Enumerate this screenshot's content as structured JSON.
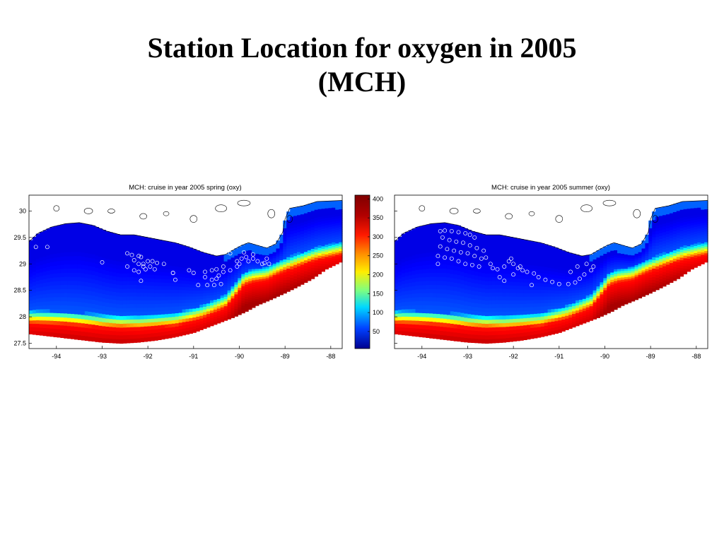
{
  "slide_title": [
    "Station Location for oxygen in 2005",
    "(MCH)"
  ],
  "colorbar": {
    "ticks": [
      "400",
      "350",
      "300",
      "250",
      "200",
      "150",
      "100",
      "50"
    ],
    "tick_values": [
      400,
      350,
      300,
      250,
      200,
      150,
      100,
      50
    ],
    "range": [
      5,
      410
    ],
    "colormap": "jet"
  },
  "chart_data": [
    {
      "type": "scatter",
      "title": "MCH: cruise in year 2005 spring (oxy)",
      "x_ticks": [
        "-94",
        "-93",
        "-92",
        "-91",
        "-90",
        "-89",
        "-88"
      ],
      "y_ticks": [
        "30",
        "29.5",
        "29",
        "28.5",
        "28",
        "27.5"
      ],
      "xlim": [
        -94.6,
        -87.75
      ],
      "ylim": [
        27.4,
        30.3
      ],
      "stations": [
        [
          -94.45,
          29.32
        ],
        [
          -94.2,
          29.32
        ],
        [
          -93.0,
          29.03
        ],
        [
          -92.45,
          29.2
        ],
        [
          -92.35,
          29.17
        ],
        [
          -92.2,
          29.15
        ],
        [
          -92.15,
          29.13
        ],
        [
          -92.45,
          28.95
        ],
        [
          -92.3,
          29.07
        ],
        [
          -92.2,
          29.0
        ],
        [
          -92.1,
          29.0
        ],
        [
          -92.0,
          29.05
        ],
        [
          -92.3,
          28.88
        ],
        [
          -92.2,
          28.85
        ],
        [
          -92.1,
          28.95
        ],
        [
          -92.05,
          28.9
        ],
        [
          -91.95,
          28.95
        ],
        [
          -91.9,
          29.05
        ],
        [
          -91.85,
          28.9
        ],
        [
          -91.8,
          29.02
        ],
        [
          -91.65,
          29.0
        ],
        [
          -91.1,
          28.88
        ],
        [
          -91.45,
          28.83
        ],
        [
          -91.45,
          28.83
        ],
        [
          -91.0,
          28.83
        ],
        [
          -90.75,
          28.85
        ],
        [
          -90.6,
          28.88
        ],
        [
          -90.5,
          28.9
        ],
        [
          -90.75,
          28.75
        ],
        [
          -90.6,
          28.7
        ],
        [
          -90.5,
          28.72
        ],
        [
          -90.45,
          28.78
        ],
        [
          -90.35,
          28.85
        ],
        [
          -90.2,
          28.88
        ],
        [
          -90.05,
          28.95
        ],
        [
          -90.0,
          29.0
        ],
        [
          -89.95,
          29.1
        ],
        [
          -89.85,
          29.13
        ],
        [
          -89.8,
          29.05
        ],
        [
          -89.7,
          29.1
        ],
        [
          -89.6,
          29.05
        ],
        [
          -89.5,
          29.0
        ],
        [
          -89.45,
          29.02
        ],
        [
          -89.4,
          29.1
        ],
        [
          -89.35,
          29.0
        ],
        [
          -90.7,
          28.6
        ],
        [
          -90.55,
          28.6
        ],
        [
          -90.4,
          28.62
        ],
        [
          -91.4,
          28.7
        ],
        [
          -92.15,
          28.68
        ],
        [
          -90.05,
          29.05
        ],
        [
          -90.2,
          29.2
        ],
        [
          -89.9,
          29.22
        ],
        [
          -89.7,
          29.18
        ],
        [
          -90.9,
          28.6
        ],
        [
          -90.35,
          28.95
        ]
      ]
    },
    {
      "type": "scatter",
      "title": "MCH: cruise in year 2005 summer (oxy)",
      "x_ticks": [
        "-94",
        "-93",
        "-92",
        "-91",
        "-90",
        "-89",
        "-88"
      ],
      "y_ticks": [
        "30",
        "29.5",
        "29",
        "28.5",
        "28",
        "27.5"
      ],
      "xlim": [
        -94.6,
        -87.75
      ],
      "ylim": [
        27.4,
        30.3
      ],
      "stations": [
        [
          -93.6,
          29.62
        ],
        [
          -93.5,
          29.63
        ],
        [
          -93.35,
          29.62
        ],
        [
          -93.2,
          29.6
        ],
        [
          -93.05,
          29.58
        ],
        [
          -92.95,
          29.55
        ],
        [
          -92.85,
          29.5
        ],
        [
          -93.55,
          29.5
        ],
        [
          -93.4,
          29.45
        ],
        [
          -93.25,
          29.42
        ],
        [
          -93.1,
          29.4
        ],
        [
          -92.95,
          29.35
        ],
        [
          -92.8,
          29.3
        ],
        [
          -92.65,
          29.25
        ],
        [
          -93.6,
          29.33
        ],
        [
          -93.45,
          29.28
        ],
        [
          -93.3,
          29.25
        ],
        [
          -93.15,
          29.22
        ],
        [
          -93.0,
          29.2
        ],
        [
          -92.85,
          29.15
        ],
        [
          -92.7,
          29.1
        ],
        [
          -93.65,
          29.15
        ],
        [
          -93.5,
          29.12
        ],
        [
          -93.35,
          29.1
        ],
        [
          -93.2,
          29.05
        ],
        [
          -93.05,
          29.0
        ],
        [
          -92.9,
          28.98
        ],
        [
          -92.75,
          28.95
        ],
        [
          -92.6,
          29.12
        ],
        [
          -92.5,
          29.0
        ],
        [
          -92.45,
          28.92
        ],
        [
          -92.35,
          28.9
        ],
        [
          -92.2,
          28.95
        ],
        [
          -92.1,
          29.05
        ],
        [
          -92.05,
          29.1
        ],
        [
          -92.0,
          29.0
        ],
        [
          -91.9,
          28.92
        ],
        [
          -91.8,
          28.88
        ],
        [
          -91.7,
          28.85
        ],
        [
          -91.55,
          28.82
        ],
        [
          -91.45,
          28.75
        ],
        [
          -91.3,
          28.7
        ],
        [
          -91.15,
          28.66
        ],
        [
          -91.0,
          28.62
        ],
        [
          -90.8,
          28.62
        ],
        [
          -90.65,
          28.65
        ],
        [
          -90.55,
          28.72
        ],
        [
          -90.45,
          28.8
        ],
        [
          -90.3,
          28.88
        ],
        [
          -90.25,
          28.95
        ],
        [
          -90.4,
          29.0
        ],
        [
          -90.6,
          28.95
        ],
        [
          -90.75,
          28.85
        ],
        [
          -92.3,
          28.75
        ],
        [
          -92.0,
          28.8
        ],
        [
          -91.85,
          28.95
        ],
        [
          -93.65,
          29.0
        ],
        [
          -92.2,
          28.68
        ],
        [
          -91.6,
          28.6
        ]
      ]
    }
  ]
}
